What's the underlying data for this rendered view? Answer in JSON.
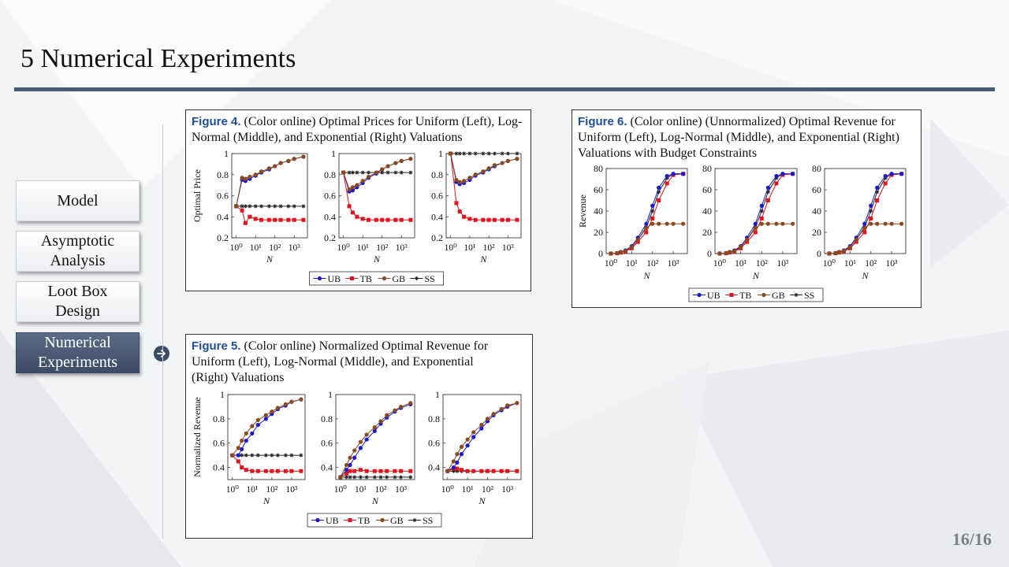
{
  "slide": {
    "title": "5 Numerical Experiments",
    "page_number": "16/16"
  },
  "nav": {
    "items": [
      {
        "label": "Model",
        "active": false
      },
      {
        "label": "Asymptotic Analysis",
        "active": false
      },
      {
        "label": "Loot Box Design",
        "active": false
      },
      {
        "label": "Numerical Experiments",
        "active": true
      }
    ]
  },
  "icons": {
    "current_section": "arrow-right-circle-icon"
  },
  "colors": {
    "UB": "#1a1acc",
    "TB": "#e0141e",
    "GB": "#8a4a1e",
    "SS": "#222222",
    "accent": "#4a5a74"
  },
  "figures": {
    "fig4": {
      "label": "Figure 4.",
      "caption": "(Color online) Optimal Prices for Uniform (Left), Log-Normal (Middle), and Exponential (Right) Valuations"
    },
    "fig5": {
      "label": "Figure 5.",
      "caption": "(Color online) Normalized Optimal Revenue for Uniform (Left), Log-Normal (Middle), and Exponential (Right) Valuations"
    },
    "fig6": {
      "label": "Figure 6.",
      "caption": "(Color online) (Unnormalized) Optimal Revenue for Uniform (Left), Log-Normal (Middle), and Exponential (Right) Valuations with Budget Constraints"
    }
  },
  "chart_data": [
    {
      "id": "fig4",
      "type": "line",
      "ylabel": "Optimal Price",
      "xlabel": "N",
      "xscale": "log",
      "x_tick_labels": [
        "10⁰",
        "10¹",
        "10²",
        "10³"
      ],
      "ylim": [
        0.2,
        1
      ],
      "y_ticks": [
        0.2,
        0.4,
        0.6,
        0.8,
        1
      ],
      "y_tick_labels": [
        "0.2",
        "0.4",
        "0.6",
        "0.8",
        "1"
      ],
      "legend": [
        "UB",
        "TB",
        "GB",
        "SS"
      ],
      "x": [
        1,
        2,
        3,
        5,
        10,
        20,
        50,
        100,
        200,
        500,
        1000,
        3000
      ],
      "panels": [
        {
          "series": [
            {
              "name": "UB",
              "values": [
                0.5,
                0.75,
                0.74,
                0.76,
                0.79,
                0.82,
                0.85,
                0.88,
                0.91,
                0.93,
                0.95,
                0.97
              ]
            },
            {
              "name": "TB",
              "values": [
                0.5,
                0.46,
                0.34,
                0.4,
                0.38,
                0.37,
                0.37,
                0.37,
                0.37,
                0.37,
                0.37,
                0.37
              ]
            },
            {
              "name": "GB",
              "values": [
                0.5,
                0.77,
                0.76,
                0.78,
                0.8,
                0.83,
                0.86,
                0.88,
                0.91,
                0.93,
                0.95,
                0.97
              ]
            },
            {
              "name": "SS",
              "values": [
                0.5,
                0.5,
                0.5,
                0.5,
                0.5,
                0.5,
                0.5,
                0.5,
                0.5,
                0.5,
                0.5,
                0.5
              ]
            }
          ]
        },
        {
          "series": [
            {
              "name": "UB",
              "values": [
                0.82,
                0.64,
                0.65,
                0.68,
                0.72,
                0.77,
                0.81,
                0.85,
                0.88,
                0.91,
                0.93,
                0.95
              ]
            },
            {
              "name": "TB",
              "values": [
                0.82,
                0.5,
                0.44,
                0.4,
                0.38,
                0.37,
                0.37,
                0.37,
                0.37,
                0.37,
                0.37,
                0.37
              ]
            },
            {
              "name": "GB",
              "values": [
                0.82,
                0.66,
                0.68,
                0.7,
                0.74,
                0.78,
                0.82,
                0.85,
                0.88,
                0.91,
                0.93,
                0.95
              ]
            },
            {
              "name": "SS",
              "values": [
                0.82,
                0.82,
                0.82,
                0.82,
                0.82,
                0.82,
                0.82,
                0.82,
                0.82,
                0.82,
                0.82,
                0.82
              ]
            }
          ]
        },
        {
          "series": [
            {
              "name": "UB",
              "values": [
                1.0,
                0.73,
                0.71,
                0.72,
                0.75,
                0.79,
                0.82,
                0.85,
                0.88,
                0.91,
                0.93,
                0.95
              ]
            },
            {
              "name": "TB",
              "values": [
                1.0,
                0.53,
                0.45,
                0.4,
                0.38,
                0.37,
                0.37,
                0.37,
                0.37,
                0.37,
                0.37,
                0.37
              ]
            },
            {
              "name": "GB",
              "values": [
                1.0,
                0.75,
                0.73,
                0.74,
                0.77,
                0.8,
                0.83,
                0.86,
                0.89,
                0.91,
                0.93,
                0.95
              ]
            },
            {
              "name": "SS",
              "values": [
                1.0,
                1.0,
                1.0,
                1.0,
                1.0,
                1.0,
                1.0,
                1.0,
                1.0,
                1.0,
                1.0,
                1.0
              ]
            }
          ]
        }
      ]
    },
    {
      "id": "fig5",
      "type": "line",
      "ylabel": "Normalized Revenue",
      "xlabel": "N",
      "xscale": "log",
      "x_tick_labels": [
        "10⁰",
        "10¹",
        "10²",
        "10³"
      ],
      "ylim": [
        0.3,
        1
      ],
      "y_ticks": [
        0.4,
        0.6,
        0.8,
        1
      ],
      "y_tick_labels": [
        "0.4",
        "0.6",
        "0.8",
        "1"
      ],
      "legend": [
        "UB",
        "TB",
        "GB",
        "SS"
      ],
      "x": [
        1,
        2,
        3,
        5,
        10,
        20,
        50,
        100,
        200,
        500,
        1000,
        3000
      ],
      "panels": [
        {
          "series": [
            {
              "name": "UB",
              "values": [
                0.5,
                0.5,
                0.55,
                0.62,
                0.68,
                0.75,
                0.8,
                0.84,
                0.88,
                0.91,
                0.94,
                0.96
              ]
            },
            {
              "name": "TB",
              "values": [
                0.5,
                0.45,
                0.4,
                0.38,
                0.37,
                0.37,
                0.37,
                0.37,
                0.37,
                0.37,
                0.37,
                0.37
              ]
            },
            {
              "name": "GB",
              "values": [
                0.5,
                0.56,
                0.62,
                0.68,
                0.74,
                0.79,
                0.83,
                0.86,
                0.89,
                0.92,
                0.94,
                0.96
              ]
            },
            {
              "name": "SS",
              "values": [
                0.5,
                0.5,
                0.5,
                0.5,
                0.5,
                0.5,
                0.5,
                0.5,
                0.5,
                0.5,
                0.5,
                0.5
              ]
            }
          ]
        },
        {
          "series": [
            {
              "name": "UB",
              "values": [
                0.32,
                0.38,
                0.42,
                0.48,
                0.56,
                0.63,
                0.7,
                0.76,
                0.81,
                0.86,
                0.89,
                0.92
              ]
            },
            {
              "name": "TB",
              "values": [
                0.32,
                0.35,
                0.37,
                0.37,
                0.38,
                0.37,
                0.37,
                0.37,
                0.37,
                0.37,
                0.37,
                0.37
              ]
            },
            {
              "name": "GB",
              "values": [
                0.32,
                0.42,
                0.48,
                0.54,
                0.61,
                0.67,
                0.73,
                0.78,
                0.83,
                0.87,
                0.9,
                0.93
              ]
            },
            {
              "name": "SS",
              "values": [
                0.32,
                0.32,
                0.32,
                0.32,
                0.32,
                0.32,
                0.32,
                0.32,
                0.32,
                0.32,
                0.32,
                0.32
              ]
            }
          ]
        },
        {
          "series": [
            {
              "name": "UB",
              "values": [
                0.37,
                0.4,
                0.44,
                0.51,
                0.58,
                0.65,
                0.72,
                0.78,
                0.83,
                0.87,
                0.9,
                0.93
              ]
            },
            {
              "name": "TB",
              "values": [
                0.37,
                0.39,
                0.39,
                0.38,
                0.37,
                0.37,
                0.37,
                0.37,
                0.37,
                0.37,
                0.37,
                0.37
              ]
            },
            {
              "name": "GB",
              "values": [
                0.37,
                0.45,
                0.51,
                0.57,
                0.63,
                0.69,
                0.75,
                0.8,
                0.84,
                0.88,
                0.91,
                0.93
              ]
            },
            {
              "name": "SS",
              "values": [
                0.37,
                0.37,
                0.37,
                0.37,
                0.37,
                0.37,
                0.37,
                0.37,
                0.37,
                0.37,
                0.37,
                0.37
              ]
            }
          ]
        }
      ]
    },
    {
      "id": "fig6",
      "type": "line",
      "ylabel": "Revenue",
      "xlabel": "N",
      "xscale": "log",
      "x_tick_labels": [
        "10⁰",
        "10¹",
        "10²",
        "10³"
      ],
      "ylim": [
        0,
        80
      ],
      "y_ticks": [
        0,
        20,
        40,
        60,
        80
      ],
      "y_tick_labels": [
        "0",
        "20",
        "40",
        "60",
        "80"
      ],
      "legend": [
        "UB",
        "TB",
        "GB",
        "SS"
      ],
      "x": [
        1,
        2,
        3,
        5,
        10,
        20,
        50,
        100,
        200,
        500,
        1000,
        3000
      ],
      "panels": [
        {
          "series": [
            {
              "name": "UB",
              "values": [
                0,
                0.5,
                1.5,
                3,
                7,
                15,
                28,
                45,
                62,
                73,
                75,
                75
              ]
            },
            {
              "name": "TB",
              "values": [
                0,
                0.3,
                1,
                2,
                5,
                11,
                20,
                33,
                50,
                66,
                74,
                75
              ]
            },
            {
              "name": "GB",
              "values": [
                0,
                0.5,
                1.3,
                2.5,
                6,
                13,
                24,
                28,
                28,
                28,
                28,
                28
              ]
            },
            {
              "name": "SS",
              "values": [
                0,
                0.4,
                1.2,
                2.5,
                6,
                13,
                25,
                40,
                58,
                71,
                75,
                75
              ]
            }
          ]
        },
        {
          "series": [
            {
              "name": "UB",
              "values": [
                0,
                0.5,
                1.5,
                3,
                7,
                15,
                28,
                45,
                62,
                73,
                75,
                75
              ]
            },
            {
              "name": "TB",
              "values": [
                0,
                0.3,
                1,
                2,
                5,
                11,
                20,
                33,
                50,
                66,
                74,
                75
              ]
            },
            {
              "name": "GB",
              "values": [
                0,
                0.5,
                1.3,
                2.5,
                6,
                13,
                24,
                28,
                28,
                28,
                28,
                28
              ]
            },
            {
              "name": "SS",
              "values": [
                0,
                0.4,
                1.2,
                2.5,
                6,
                13,
                25,
                40,
                58,
                71,
                75,
                75
              ]
            }
          ]
        },
        {
          "series": [
            {
              "name": "UB",
              "values": [
                0,
                0.5,
                1.5,
                3,
                7,
                15,
                28,
                45,
                62,
                73,
                75,
                75
              ]
            },
            {
              "name": "TB",
              "values": [
                0,
                0.3,
                1,
                2,
                5,
                11,
                20,
                33,
                50,
                66,
                74,
                75
              ]
            },
            {
              "name": "GB",
              "values": [
                0,
                0.5,
                1.3,
                2.5,
                6,
                13,
                24,
                28,
                28,
                28,
                28,
                28
              ]
            },
            {
              "name": "SS",
              "values": [
                0,
                0.4,
                1.2,
                2.5,
                6,
                13,
                25,
                40,
                58,
                71,
                75,
                75
              ]
            }
          ]
        }
      ]
    }
  ]
}
